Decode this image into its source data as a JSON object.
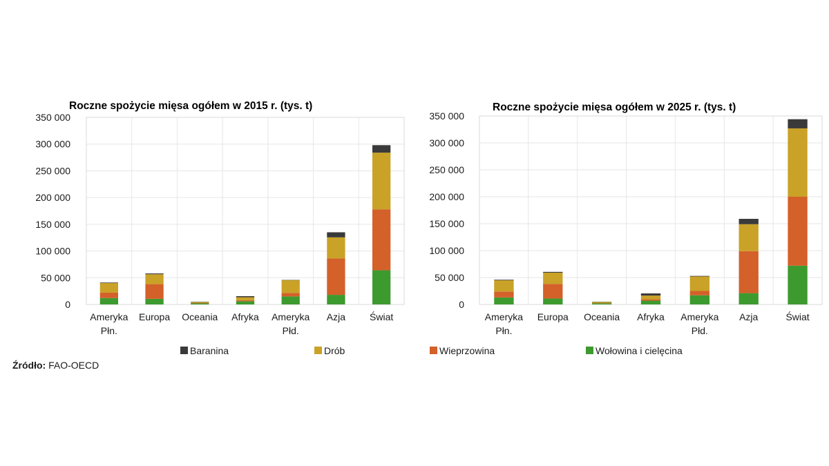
{
  "legend": [
    {
      "key": "baranina",
      "label": "Baranina",
      "color": "#3a3a3a"
    },
    {
      "key": "drob",
      "label": "Drób",
      "color": "#c9a227"
    },
    {
      "key": "wieprzowina",
      "label": "Wieprzowina",
      "color": "#d4602a"
    },
    {
      "key": "wolowina",
      "label": "Wołowina i cielęcina",
      "color": "#3d9a2e"
    }
  ],
  "source": {
    "label": "Źródło:",
    "text": "FAO-OECD"
  },
  "chart_data": [
    {
      "type": "bar",
      "stacked": true,
      "title": "Roczne spożycie mięsa ogółem w 2015 r. (tys. t)",
      "categories": [
        [
          "Ameryka",
          "Płn."
        ],
        [
          "Europa"
        ],
        [
          "Oceania"
        ],
        [
          "Afryka"
        ],
        [
          "Ameryka",
          "Płd."
        ],
        [
          "Azja"
        ],
        [
          "Świat"
        ]
      ],
      "ylim": [
        0,
        350000
      ],
      "yticks": [
        0,
        50000,
        100000,
        150000,
        200000,
        250000,
        300000,
        350000
      ],
      "ytick_labels": [
        "0",
        "50 000",
        "100 000",
        "150 000",
        "200 000",
        "250 000",
        "300 000",
        "350 000"
      ],
      "grid": true,
      "series": [
        {
          "name": "Wołowina i cielęcina",
          "values": [
            12000,
            10500,
            2000,
            6000,
            15000,
            18000,
            64000
          ]
        },
        {
          "name": "Wieprzowina",
          "values": [
            10000,
            27500,
            600,
            2000,
            6500,
            68000,
            114000
          ]
        },
        {
          "name": "Drób",
          "values": [
            18000,
            18500,
            1800,
            5500,
            24000,
            39500,
            106000
          ]
        },
        {
          "name": "Baranina",
          "values": [
            1000,
            1500,
            600,
            2000,
            500,
            9500,
            14000
          ]
        }
      ]
    },
    {
      "type": "bar",
      "stacked": true,
      "title": "Roczne spożycie mięsa ogółem w 2025 r. (tys. t)",
      "categories": [
        [
          "Ameryka",
          "Płn."
        ],
        [
          "Europa"
        ],
        [
          "Oceania"
        ],
        [
          "Afryka"
        ],
        [
          "Ameryka",
          "Płd."
        ],
        [
          "Azja"
        ],
        [
          "Świat"
        ]
      ],
      "ylim": [
        0,
        350000
      ],
      "yticks": [
        0,
        50000,
        100000,
        150000,
        200000,
        250000,
        300000,
        350000
      ],
      "ytick_labels": [
        "0",
        "50 000",
        "100 000",
        "150 000",
        "200 000",
        "250 000",
        "300 000",
        "350 000"
      ],
      "grid": true,
      "series": [
        {
          "name": "Wołowina i cielęcina",
          "values": [
            13000,
            11000,
            2000,
            7000,
            17000,
            21000,
            72000
          ]
        },
        {
          "name": "Wieprzowina",
          "values": [
            11000,
            27000,
            500,
            2500,
            8000,
            78000,
            128000
          ]
        },
        {
          "name": "Drób",
          "values": [
            21000,
            21000,
            2000,
            7000,
            27000,
            50000,
            127000
          ]
        },
        {
          "name": "Baranina",
          "values": [
            1000,
            1500,
            500,
            4000,
            1000,
            10000,
            17000
          ]
        }
      ]
    }
  ]
}
